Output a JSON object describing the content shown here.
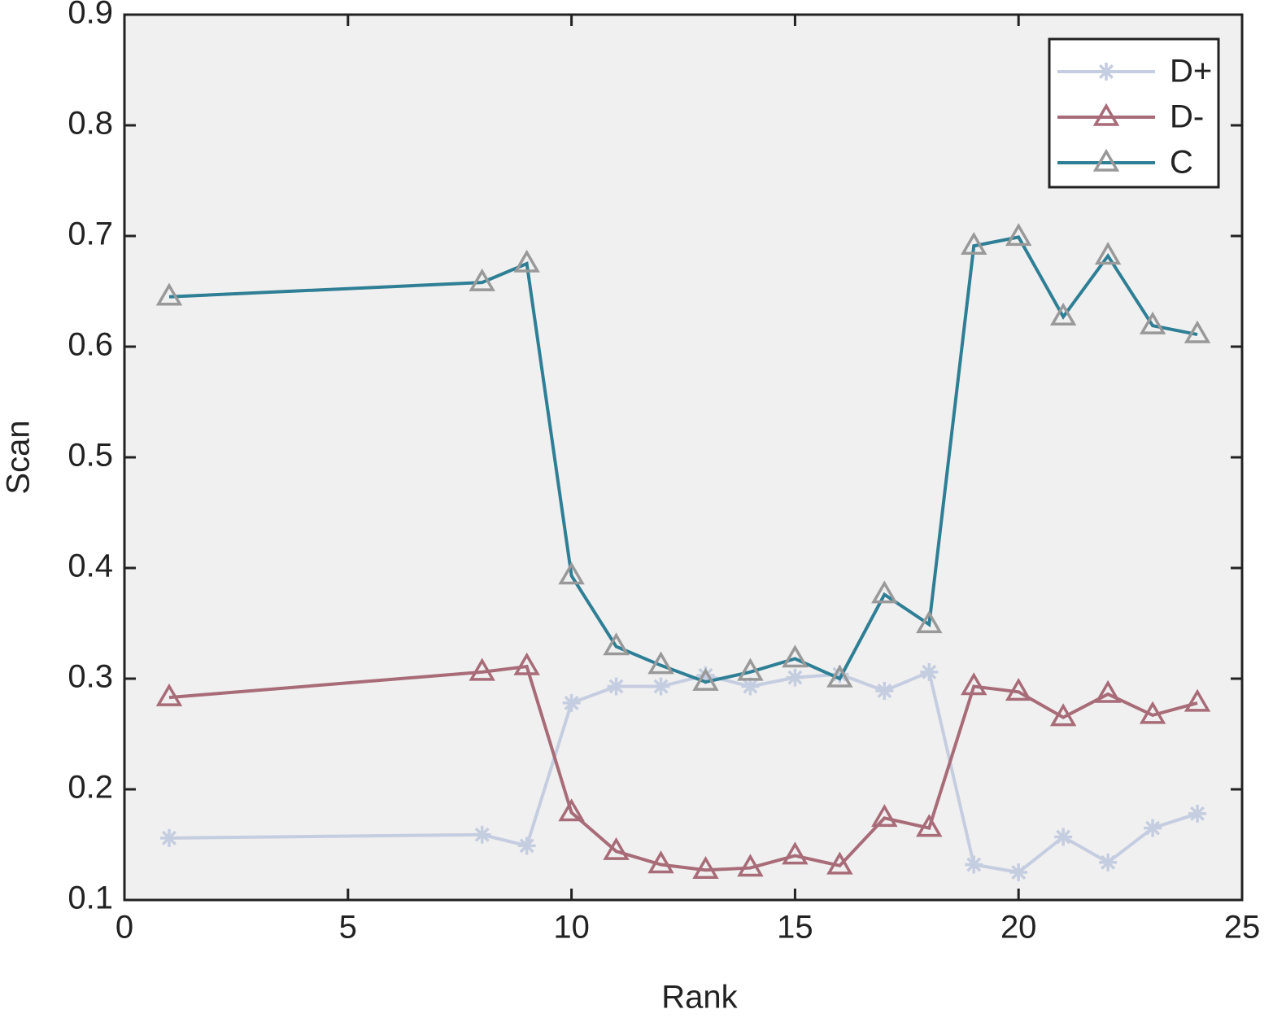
{
  "chart_data": {
    "type": "line",
    "xlabel": "Rank",
    "ylabel": "Scan",
    "x": [
      1,
      8,
      9,
      10,
      11,
      12,
      13,
      14,
      15,
      16,
      17,
      18,
      19,
      20,
      21,
      22,
      23,
      24
    ],
    "series": [
      {
        "name": "D+",
        "color": "#c5cde0",
        "marker": "asterisk",
        "marker_color": "#c5cde0",
        "values": [
          0.156,
          0.159,
          0.149,
          0.278,
          0.293,
          0.293,
          0.303,
          0.293,
          0.301,
          0.304,
          0.289,
          0.306,
          0.132,
          0.125,
          0.157,
          0.134,
          0.165,
          0.178
        ]
      },
      {
        "name": "D-",
        "color": "#a86b78",
        "marker": "triangle",
        "marker_color": "#a86b78",
        "values": [
          0.283,
          0.306,
          0.311,
          0.179,
          0.144,
          0.132,
          0.127,
          0.129,
          0.14,
          0.131,
          0.174,
          0.165,
          0.293,
          0.288,
          0.265,
          0.286,
          0.267,
          0.278
        ]
      },
      {
        "name": "C",
        "color": "#2e7f95",
        "marker": "triangle",
        "marker_color": "#999999",
        "values": [
          0.645,
          0.658,
          0.675,
          0.393,
          0.329,
          0.312,
          0.297,
          0.306,
          0.318,
          0.3,
          0.376,
          0.349,
          0.691,
          0.699,
          0.627,
          0.682,
          0.619,
          0.611
        ]
      }
    ],
    "xlim": [
      0,
      25
    ],
    "xticks": [
      0,
      5,
      10,
      15,
      20,
      25
    ],
    "ylim": [
      0.1,
      0.9
    ],
    "yticks": [
      0.1,
      0.2,
      0.3,
      0.4,
      0.5,
      0.6,
      0.7,
      0.8,
      0.9
    ],
    "grid": false,
    "legend": "upper right"
  }
}
